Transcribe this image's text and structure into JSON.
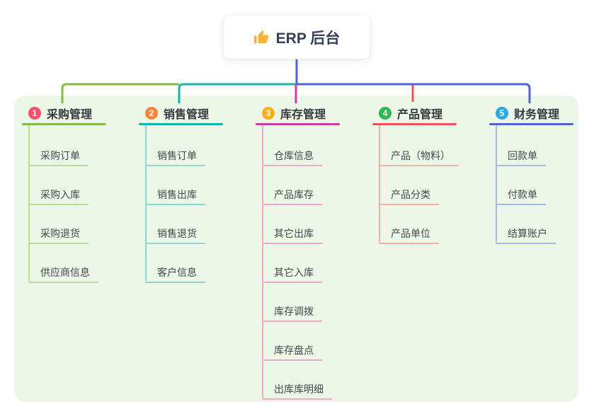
{
  "root": {
    "label": "ERP 后台",
    "icon": "thumbs-up-icon"
  },
  "canvas": {
    "background": "#FFFFFF",
    "panel_color": "#ECF7E8",
    "root_line_color": "#4A67D0",
    "icon_color": "#F2B63C"
  },
  "branches": [
    {
      "index": "1",
      "title": "采购管理",
      "color": "#84BB44",
      "badge_color": "#F3536F",
      "child_line_color": "#B9DB9B",
      "children": [
        "采购订单",
        "采购入库",
        "采购退货",
        "供应商信息"
      ]
    },
    {
      "index": "2",
      "title": "销售管理",
      "color": "#14B4B0",
      "badge_color": "#F6843D",
      "child_line_color": "#93D7D1",
      "children": [
        "销售订单",
        "销售出库",
        "销售退货",
        "客户信息"
      ]
    },
    {
      "index": "3",
      "title": "库存管理",
      "color": "#C73EA5",
      "badge_color": "#FBAF18",
      "child_line_color": "#EDAACB",
      "children": [
        "仓库信息",
        "产品库存",
        "其它出库",
        "其它入库",
        "库存调拨",
        "库存盘点",
        "出库库明细"
      ]
    },
    {
      "index": "4",
      "title": "产品管理",
      "color": "#F25450",
      "badge_color": "#2FB951",
      "child_line_color": "#F9AEA8",
      "children": [
        "产品（物料）",
        "产品分类",
        "产品单位"
      ]
    },
    {
      "index": "5",
      "title": "财务管理",
      "color": "#4A67D0",
      "badge_color": "#2CA9E1",
      "child_line_color": "#A6B9E8",
      "children": [
        "回款单",
        "付款单",
        "结算账户"
      ]
    }
  ]
}
